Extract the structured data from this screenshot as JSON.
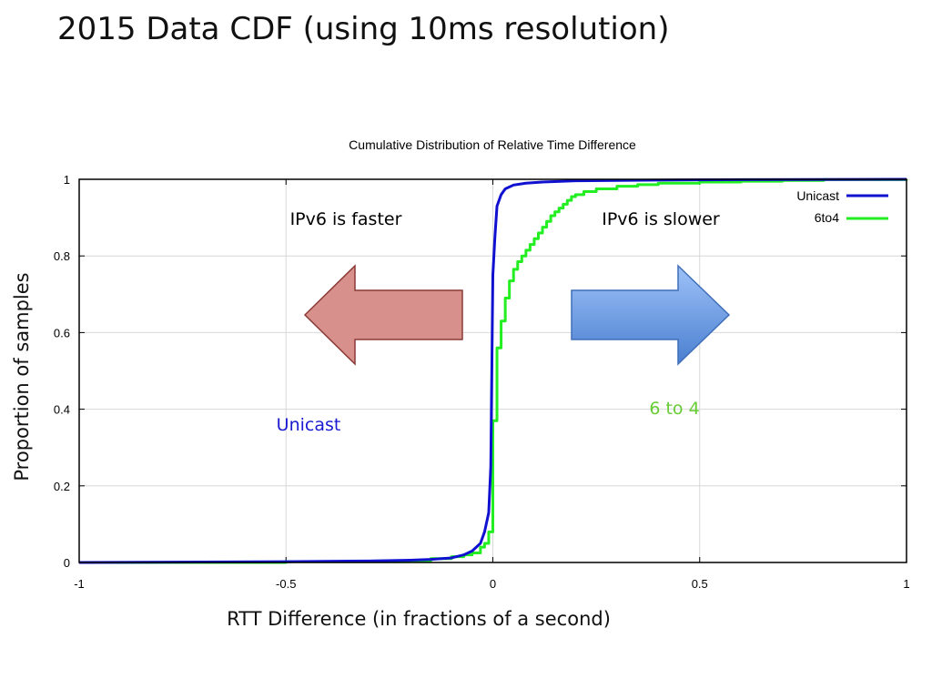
{
  "slide": {
    "title": "2015 Data CDF (using 10ms resolution)",
    "ylabel": "Proportion of samples",
    "xlabel": "RTT Difference (in fractions of a second)"
  },
  "annotations": {
    "faster": "IPv6 is faster",
    "slower": "IPv6 is slower",
    "unicast": "Unicast",
    "sixtofour": "6 to 4"
  },
  "colors": {
    "unicast": "#1010d0",
    "sixtofour": "#22ee22",
    "sixtofour_label": "#66cc33",
    "arrow_left_fill": "#d8908c",
    "arrow_right_fill": "#6a9ee0"
  },
  "chart_data": {
    "type": "line",
    "title": "Cumulative Distribution of Relative Time Difference",
    "xlim": [
      -1,
      1
    ],
    "ylim": [
      0,
      1
    ],
    "xticks": [
      -1,
      -0.5,
      0,
      0.5,
      1
    ],
    "xtick_labels": [
      "-1",
      "-0.5",
      "0",
      "0.5",
      "1"
    ],
    "yticks": [
      0,
      0.2,
      0.4,
      0.6,
      0.8,
      1
    ],
    "ytick_labels": [
      "0",
      "0.2",
      "0.4",
      "0.6",
      "0.8",
      "1"
    ],
    "grid": true,
    "legend_position": "top-right",
    "series": [
      {
        "name": "Unicast",
        "x": [
          -1,
          -0.5,
          -0.3,
          -0.2,
          -0.15,
          -0.1,
          -0.07,
          -0.05,
          -0.03,
          -0.02,
          -0.01,
          -0.005,
          0,
          0.005,
          0.01,
          0.02,
          0.03,
          0.05,
          0.08,
          0.12,
          0.2,
          0.4,
          0.6,
          1
        ],
        "y": [
          0,
          0.002,
          0.004,
          0.006,
          0.008,
          0.012,
          0.02,
          0.03,
          0.05,
          0.08,
          0.13,
          0.25,
          0.75,
          0.85,
          0.93,
          0.96,
          0.975,
          0.985,
          0.99,
          0.993,
          0.996,
          0.998,
          0.999,
          1
        ]
      },
      {
        "name": "6to4",
        "x": [
          -1,
          -0.5,
          -0.2,
          -0.15,
          -0.1,
          -0.07,
          -0.05,
          -0.03,
          -0.02,
          -0.01,
          0,
          0.01,
          0.02,
          0.03,
          0.04,
          0.05,
          0.06,
          0.07,
          0.08,
          0.09,
          0.1,
          0.11,
          0.12,
          0.13,
          0.14,
          0.15,
          0.16,
          0.17,
          0.18,
          0.19,
          0.2,
          0.22,
          0.25,
          0.3,
          0.35,
          0.4,
          0.5,
          0.6,
          0.7,
          0.8,
          1
        ],
        "y": [
          0,
          0.002,
          0.004,
          0.01,
          0.015,
          0.02,
          0.025,
          0.04,
          0.05,
          0.08,
          0.37,
          0.56,
          0.63,
          0.69,
          0.735,
          0.765,
          0.785,
          0.8,
          0.815,
          0.83,
          0.845,
          0.86,
          0.875,
          0.89,
          0.905,
          0.915,
          0.925,
          0.935,
          0.945,
          0.955,
          0.96,
          0.968,
          0.975,
          0.982,
          0.986,
          0.99,
          0.993,
          0.995,
          0.997,
          0.999,
          1
        ]
      }
    ]
  }
}
